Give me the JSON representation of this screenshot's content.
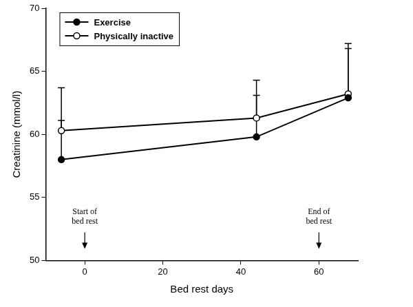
{
  "chart_data": {
    "type": "line",
    "x_label": "Bed rest days",
    "y_label": "Creatinine (mmol/l)",
    "x": [
      -6,
      44,
      67.5
    ],
    "xlim": [
      -10,
      70
    ],
    "xticks": [
      0,
      20,
      40,
      60
    ],
    "ylim": [
      50,
      70
    ],
    "yticks": [
      50,
      55,
      60,
      65,
      70
    ],
    "grid": false,
    "legend": "upper left",
    "series": [
      {
        "name": "Exercise",
        "color": "#000000",
        "marker": "filled circle",
        "values": [
          58.0,
          59.8,
          62.9
        ],
        "error_upper": [
          3.1,
          3.3,
          3.9
        ]
      },
      {
        "name": "Physically inactive",
        "color": "#000000",
        "marker": "open circle",
        "values": [
          60.3,
          61.3,
          63.2
        ],
        "error_upper": [
          3.4,
          3.0,
          4.0
        ]
      }
    ],
    "annotations": [
      {
        "text": [
          "Start of",
          "bed rest"
        ],
        "x": 0
      },
      {
        "text": [
          "End of",
          "bed rest"
        ],
        "x": 60
      }
    ]
  }
}
